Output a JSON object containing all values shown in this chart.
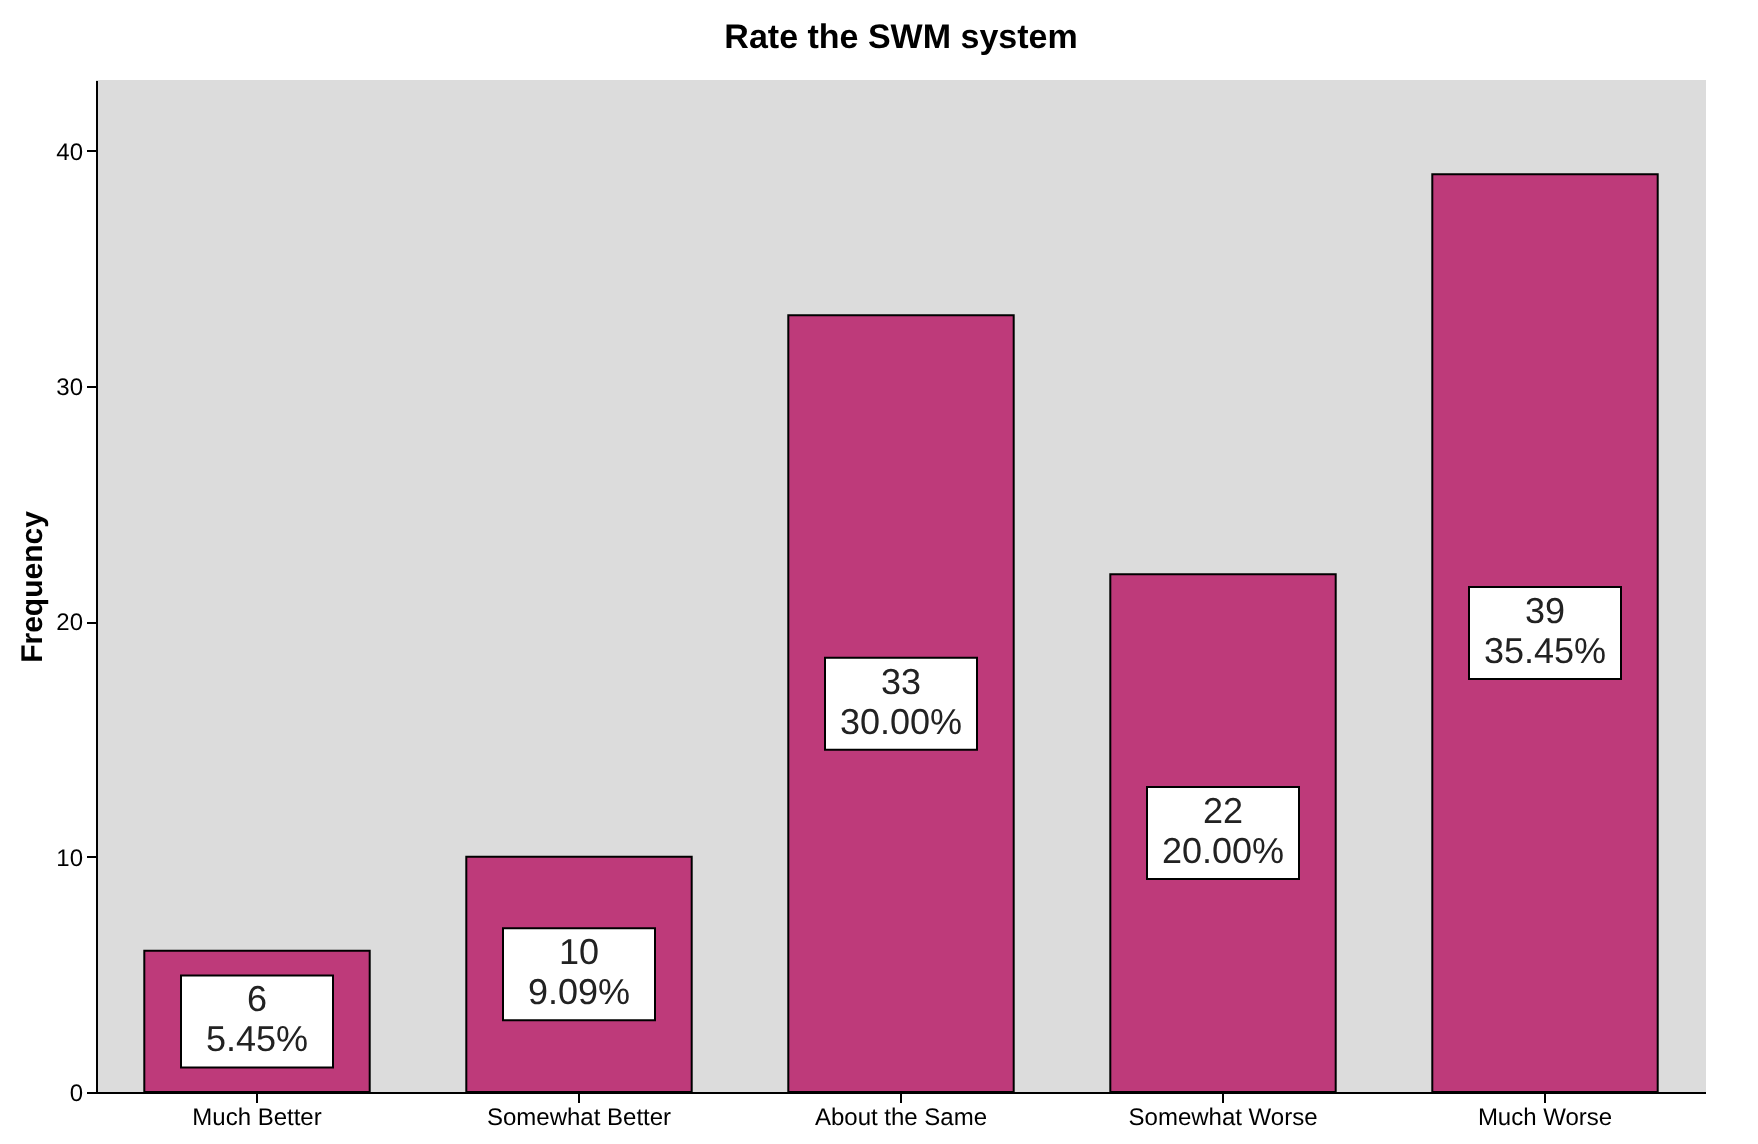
{
  "chart_data": {
    "type": "bar",
    "title": "Rate the SWM system",
    "ylabel": "Frequency",
    "categories": [
      "Much Better",
      "Somewhat Better",
      "About the Same",
      "Somewhat Worse",
      "Much Worse"
    ],
    "values": [
      6,
      10,
      33,
      22,
      39
    ],
    "color": "#be3a7a",
    "value_labels": [
      "6\n5.45%",
      "10\n9.09%",
      "33\n30.00%",
      "22\n20.00%",
      "39\n35.45%"
    ],
    "ylim": [
      0,
      43
    ],
    "yticks": [
      0,
      10,
      20,
      30,
      40
    ]
  }
}
